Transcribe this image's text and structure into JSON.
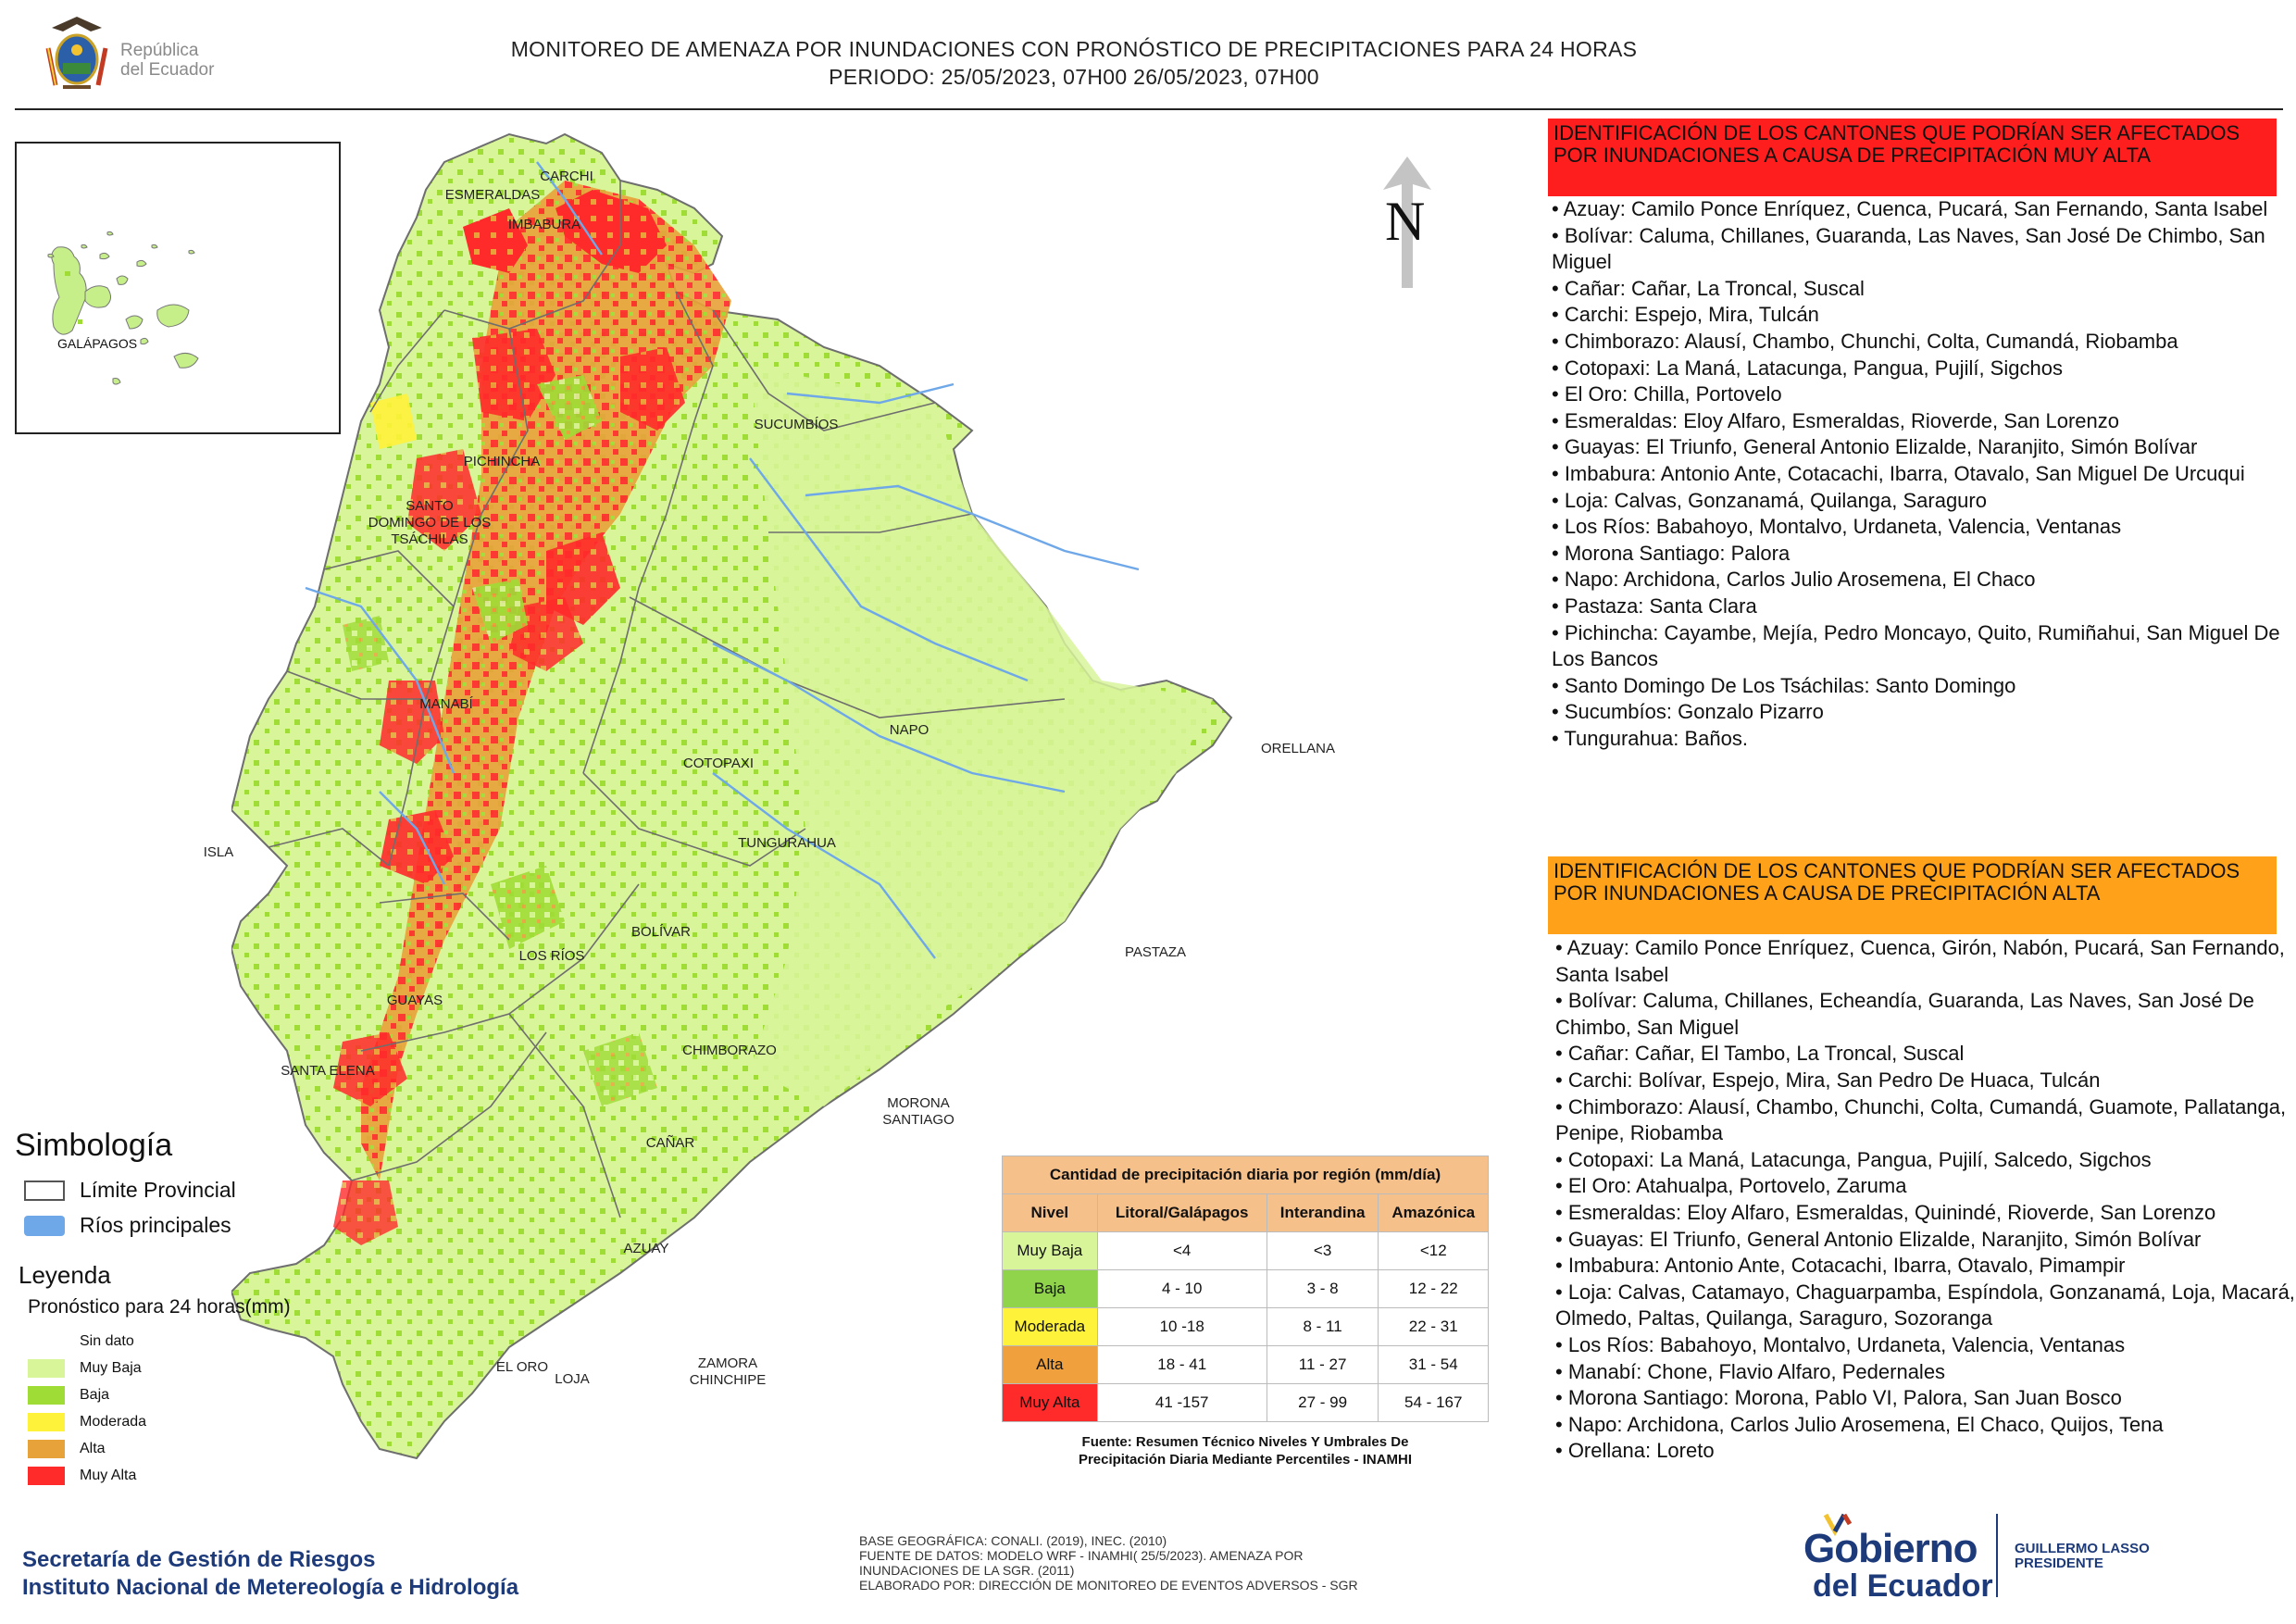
{
  "header": {
    "logo_text_line1": "República",
    "logo_text_line2": "del Ecuador",
    "title_line1": "MONITOREO DE AMENAZA POR INUNDACIONES  CON PRONÓSTICO DE  PRECIPITACIONES PARA 24 HORAS",
    "title_line2": "PERIODO: 25/05/2023, 07H00 26/05/2023, 07H00"
  },
  "inset": {
    "label": "GALÁPAGOS"
  },
  "map": {
    "north_label": "N",
    "province_labels": [
      "CARCHI",
      "ESMERALDAS",
      "IMBABURA",
      "SUCUMBÍOS",
      "PICHINCHA",
      "SANTO\nDOMINGO DE LOS\nTSÁCHILAS",
      "MANABÍ",
      "NAPO",
      "ORELLANA",
      "COTOPAXI",
      "TUNGURAHUA",
      "ISLA",
      "BOLÍVAR",
      "LOS RÍOS",
      "PASTAZA",
      "GUAYAS",
      "CHIMBORAZO",
      "SANTA ELENA",
      "MORONA\nSANTIAGO",
      "CAÑAR",
      "AZUAY",
      "EL ORO",
      "ZAMORA\nCHINCHIPE",
      "LOJA"
    ],
    "colors": {
      "muy_baja": "#d8f59a",
      "baja": "#9fdc36",
      "moderada": "#fff23a",
      "alta": "#e8a23a",
      "muy_alta": "#ff2a2a",
      "rivers": "#6fa8e8",
      "border": "#6e6e6e"
    }
  },
  "panel": {
    "muy_alta_heading": "IDENTIFICACIÓN DE LOS CANTONES QUE PODRÍAN SER AFECTADOS POR INUNDACIONES  A CAUSA DE PRECIPITACIÓN MUY ALTA",
    "muy_alta_items": [
      "• Azuay: Camilo Ponce Enríquez, Cuenca, Pucará, San Fernando, Santa Isabel",
      "• Bolívar: Caluma, Chillanes, Guaranda, Las Naves, San José De Chimbo, San Miguel",
      "• Cañar: Cañar, La Troncal, Suscal",
      "• Carchi: Espejo, Mira, Tulcán",
      "• Chimborazo: Alausí, Chambo, Chunchi, Colta, Cumandá, Riobamba",
      "• Cotopaxi: La Maná, Latacunga, Pangua, Pujilí, Sigchos",
      "• El Oro: Chilla, Portovelo",
      "• Esmeraldas: Eloy Alfaro, Esmeraldas, Rioverde, San Lorenzo",
      "• Guayas: El Triunfo, General Antonio Elizalde, Naranjito, Simón Bolívar",
      "• Imbabura: Antonio Ante, Cotacachi, Ibarra, Otavalo, San Miguel De Urcuqui",
      "• Loja: Calvas, Gonzanamá, Quilanga, Saraguro",
      "• Los Ríos: Babahoyo, Montalvo, Urdaneta, Valencia, Ventanas",
      "• Morona Santiago: Palora",
      "• Napo: Archidona, Carlos Julio Arosemena, El Chaco",
      "• Pastaza: Santa Clara",
      "• Pichincha: Cayambe, Mejía, Pedro Moncayo, Quito, Rumiñahui, San Miguel De Los Bancos",
      "• Santo Domingo De Los Tsáchilas: Santo Domingo",
      "• Sucumbíos: Gonzalo Pizarro",
      "• Tungurahua: Baños."
    ],
    "alta_heading": "IDENTIFICACIÓN DE LOS CANTONES QUE  PODRÍAN SER AFECTADOS POR INUNDACIONES  A CAUSA DE PRECIPITACIÓN ALTA",
    "alta_items": [
      "• Azuay: Camilo Ponce Enríquez, Cuenca, Girón, Nabón, Pucará, San Fernando, Santa Isabel",
      "• Bolívar: Caluma, Chillanes, Echeandía, Guaranda, Las Naves, San José De Chimbo, San Miguel",
      "• Cañar: Cañar, El Tambo, La Troncal, Suscal",
      "• Carchi: Bolívar, Espejo, Mira, San Pedro De Huaca, Tulcán",
      "• Chimborazo: Alausí, Chambo, Chunchi, Colta, Cumandá, Guamote, Pallatanga, Penipe, Riobamba",
      "• Cotopaxi: La Maná, Latacunga, Pangua, Pujilí, Salcedo, Sigchos",
      "• El Oro: Atahualpa, Portovelo, Zaruma",
      "• Esmeraldas: Eloy Alfaro, Esmeraldas, Quinindé, Rioverde, San Lorenzo",
      "• Guayas: El Triunfo, General Antonio Elizalde, Naranjito, Simón Bolívar",
      "• Imbabura: Antonio Ante, Cotacachi, Ibarra, Otavalo, Pimampir",
      "• Loja: Calvas, Catamayo, Chaguarpamba, Espíndola, Gonzanamá, Loja, Macará, Olmedo, Paltas, Quilanga, Saraguro, Sozoranga",
      "• Los Ríos: Babahoyo, Montalvo, Urdaneta, Valencia, Ventanas",
      "• Manabí: Chone, Flavio Alfaro, Pedernales",
      "• Morona Santiago: Morona, Pablo VI, Palora, San Juan Bosco",
      "• Napo: Archidona, Carlos Julio Arosemena, El Chaco, Quijos, Tena",
      "• Orellana: Loreto"
    ]
  },
  "legend": {
    "simbologia_title": "Simbología",
    "limite_label": "Límite Provincial",
    "rios_label": "Ríos principales",
    "leyenda_title": "Leyenda",
    "pronostico_label": "Pronóstico para 24 horas(mm)",
    "items": [
      {
        "label": "Sin dato",
        "color": "#ffffff"
      },
      {
        "label": "Muy Baja",
        "color": "#d8f59a"
      },
      {
        "label": "Baja",
        "color": "#9fdc36"
      },
      {
        "label": "Moderada",
        "color": "#fff23a"
      },
      {
        "label": "Alta",
        "color": "#e8a23a"
      },
      {
        "label": "Muy Alta",
        "color": "#ff2a2a"
      }
    ]
  },
  "table": {
    "title": "Cantidad de precipitación diaria por región (mm/día)",
    "headers": [
      "Nivel",
      "Litoral/Galápagos",
      "Interandina",
      "Amazónica"
    ],
    "rows": [
      {
        "nivel": "Muy Baja",
        "color": "#d8f59a",
        "litoral": "<4",
        "interandina": "<3",
        "amazonica": "<12"
      },
      {
        "nivel": "Baja",
        "color": "#8fd44a",
        "litoral": "4 - 10",
        "interandina": "3 - 8",
        "amazonica": "12 - 22"
      },
      {
        "nivel": "Moderada",
        "color": "#fff23a",
        "litoral": "10 -18",
        "interandina": "8 - 11",
        "amazonica": "22 - 31"
      },
      {
        "nivel": "Alta",
        "color": "#f0a03c",
        "litoral": "18 - 41",
        "interandina": "11 - 27",
        "amazonica": "31 - 54"
      },
      {
        "nivel": "Muy Alta",
        "color": "#ff2a2a",
        "litoral": "41 -157",
        "interandina": "27 - 99",
        "amazonica": "54 - 167"
      }
    ],
    "source_line1": "Fuente: Resumen Técnico Niveles Y Umbrales De",
    "source_line2": "Precipitación Diaria Mediante Percentiles - INAMHI"
  },
  "footer": {
    "org_line1": "Secretaría de Gestión de Riesgos",
    "org_line2": "Instituto Nacional de Metereología e Hidrología",
    "base_line1": "BASE GEOGRÁFICA: CONALI. (2019), INEC. (2010)",
    "base_line2": "FUENTE DE DATOS: MODELO WRF - INAMHI( 25/5/2023).  AMENAZA POR",
    "base_line3": "INUNDACIONES DE LA SGR. (2011)",
    "base_line4": "ELABORADO POR: DIRECCIÓN DE MONITOREO DE EVENTOS ADVERSOS - SGR",
    "gob_line1": "Gobierno",
    "gob_line2": "del Ecuador",
    "lasso_line1": "GUILLERMO LASSO",
    "lasso_line2": "PRESIDENTE"
  }
}
